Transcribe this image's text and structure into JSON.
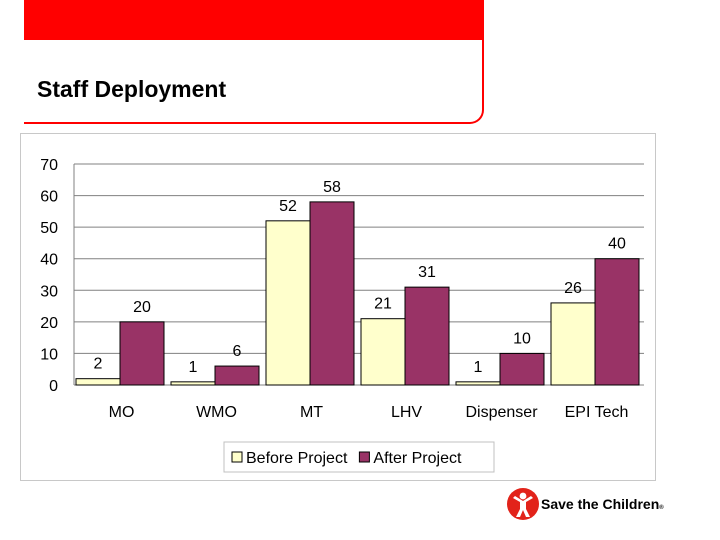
{
  "slide": {
    "title": "Staff Deployment",
    "accent_color": "#ff0000"
  },
  "chart_data": {
    "type": "bar",
    "categories": [
      "MO",
      "WMO",
      "MT",
      "LHV",
      "Dispenser",
      "EPI Tech"
    ],
    "series": [
      {
        "name": "Before Project",
        "values": [
          2,
          1,
          52,
          21,
          1,
          26
        ],
        "color": "#ffffcc"
      },
      {
        "name": "After Project",
        "values": [
          20,
          6,
          58,
          31,
          10,
          40
        ],
        "color": "#993366"
      }
    ],
    "ylim": [
      0,
      70
    ],
    "yticks": [
      0,
      10,
      20,
      30,
      40,
      50,
      60,
      70
    ],
    "grid": true,
    "data_labels": true,
    "legend_position": "bottom"
  },
  "logo": {
    "text": "Save the Children",
    "mark": "®",
    "icon": "child-figure-icon"
  }
}
